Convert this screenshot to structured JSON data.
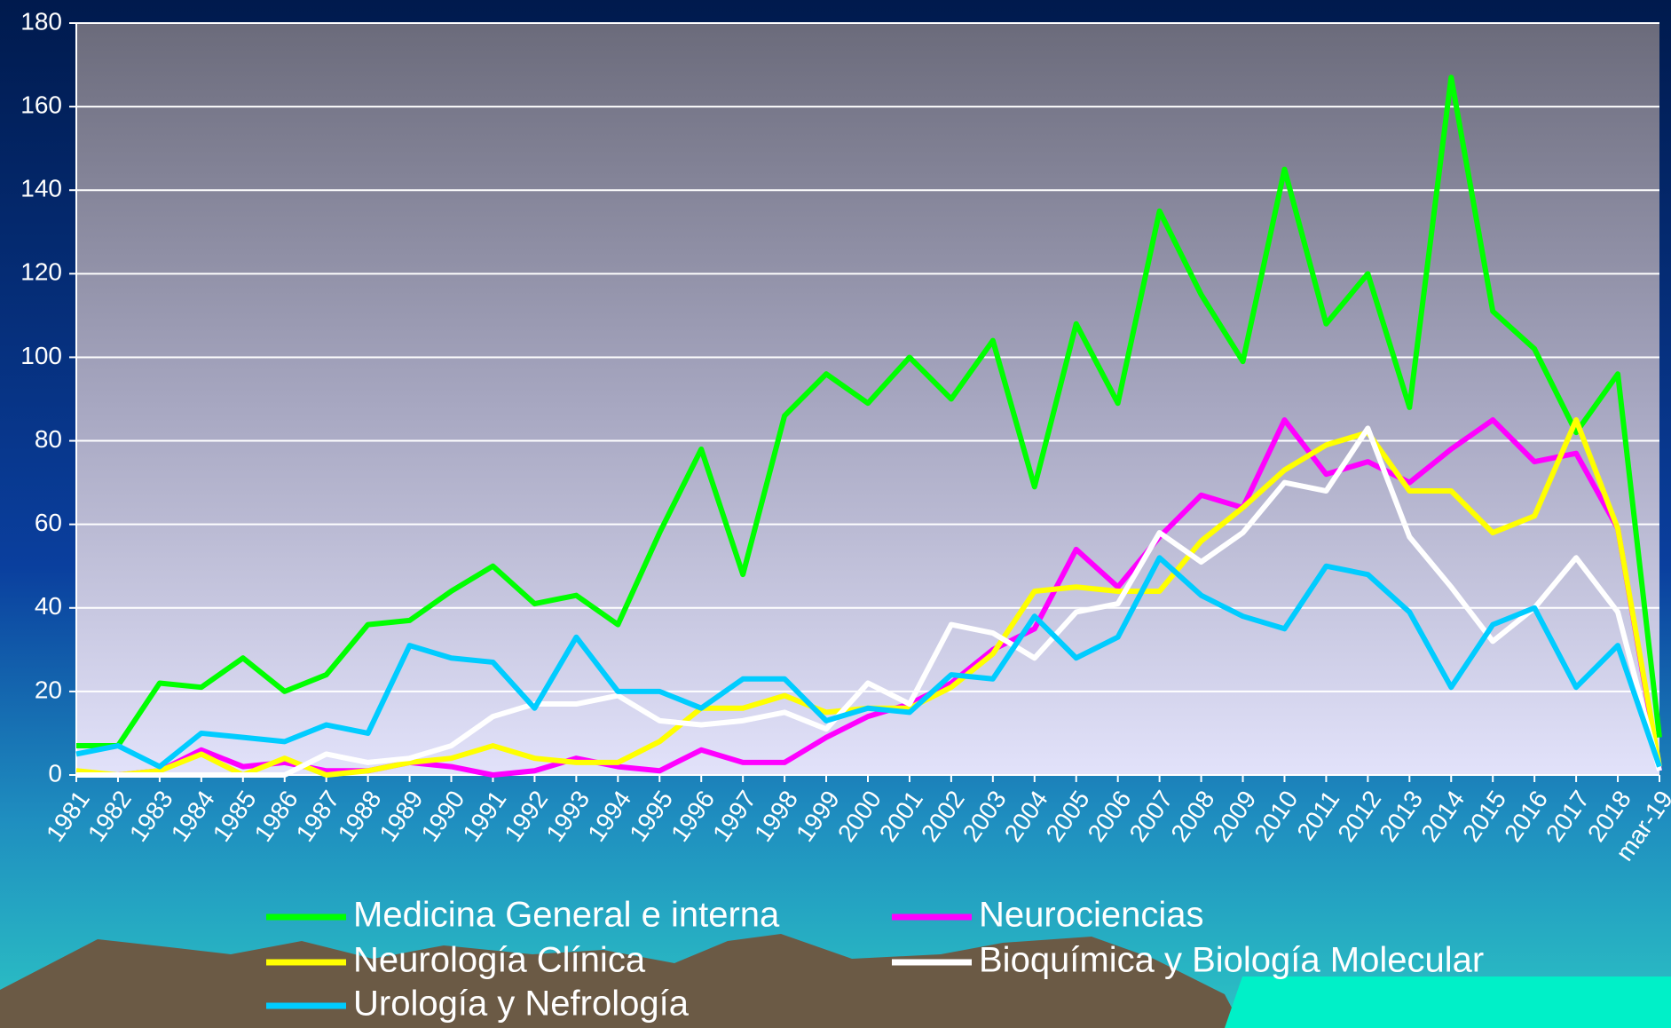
{
  "chart_data": {
    "type": "line",
    "categories": [
      "1981",
      "1982",
      "1983",
      "1984",
      "1985",
      "1986",
      "1987",
      "1988",
      "1989",
      "1990",
      "1991",
      "1992",
      "1993",
      "1994",
      "1995",
      "1996",
      "1997",
      "1998",
      "1999",
      "2000",
      "2001",
      "2002",
      "2003",
      "2004",
      "2005",
      "2006",
      "2007",
      "2008",
      "2009",
      "2010",
      "2011",
      "2012",
      "2013",
      "2014",
      "2015",
      "2016",
      "2017",
      "2018",
      "mar-19"
    ],
    "series": [
      {
        "name": "Medicina General e interna",
        "color": "#00ff00",
        "values": [
          7,
          7,
          22,
          21,
          28,
          20,
          24,
          36,
          37,
          44,
          50,
          41,
          43,
          36,
          58,
          78,
          48,
          86,
          96,
          89,
          100,
          90,
          104,
          69,
          108,
          89,
          135,
          115,
          99,
          145,
          108,
          120,
          88,
          167,
          111,
          102,
          82,
          96,
          9
        ]
      },
      {
        "name": "Neurociencias",
        "color": "#ff00ff",
        "values": [
          0,
          0,
          1,
          6,
          2,
          3,
          1,
          1,
          3,
          2,
          0,
          1,
          4,
          2,
          1,
          6,
          3,
          3,
          9,
          14,
          17,
          22,
          30,
          35,
          54,
          45,
          57,
          67,
          64,
          85,
          72,
          75,
          70,
          78,
          85,
          75,
          77,
          59,
          1
        ]
      },
      {
        "name": "Neurología Clínica",
        "color": "#ffff00",
        "values": [
          1,
          0,
          1,
          5,
          0,
          4,
          0,
          1,
          3,
          4,
          7,
          4,
          3,
          3,
          8,
          16,
          16,
          19,
          15,
          16,
          16,
          21,
          29,
          44,
          45,
          44,
          44,
          56,
          64,
          73,
          79,
          82,
          68,
          68,
          58,
          62,
          85,
          59,
          2
        ]
      },
      {
        "name": "Bioquímica y Biología Molecular",
        "color": "#ffffff",
        "values": [
          0,
          0,
          0,
          0,
          0,
          0,
          5,
          3,
          4,
          7,
          14,
          17,
          17,
          19,
          13,
          12,
          13,
          15,
          11,
          22,
          17,
          36,
          34,
          28,
          39,
          41,
          58,
          51,
          58,
          70,
          68,
          83,
          57,
          45,
          32,
          40,
          52,
          39,
          1
        ]
      },
      {
        "name": "Urología y Nefrología",
        "color": "#00ccff",
        "values": [
          5,
          7,
          2,
          10,
          9,
          8,
          12,
          10,
          31,
          28,
          27,
          16,
          33,
          20,
          20,
          16,
          23,
          23,
          13,
          16,
          15,
          24,
          23,
          38,
          28,
          33,
          52,
          43,
          38,
          35,
          50,
          48,
          39,
          21,
          36,
          40,
          21,
          31,
          2
        ]
      }
    ],
    "ylim": [
      0,
      180
    ],
    "yticks": [
      0,
      20,
      40,
      60,
      80,
      100,
      120,
      140,
      160,
      180
    ],
    "grid": true
  }
}
